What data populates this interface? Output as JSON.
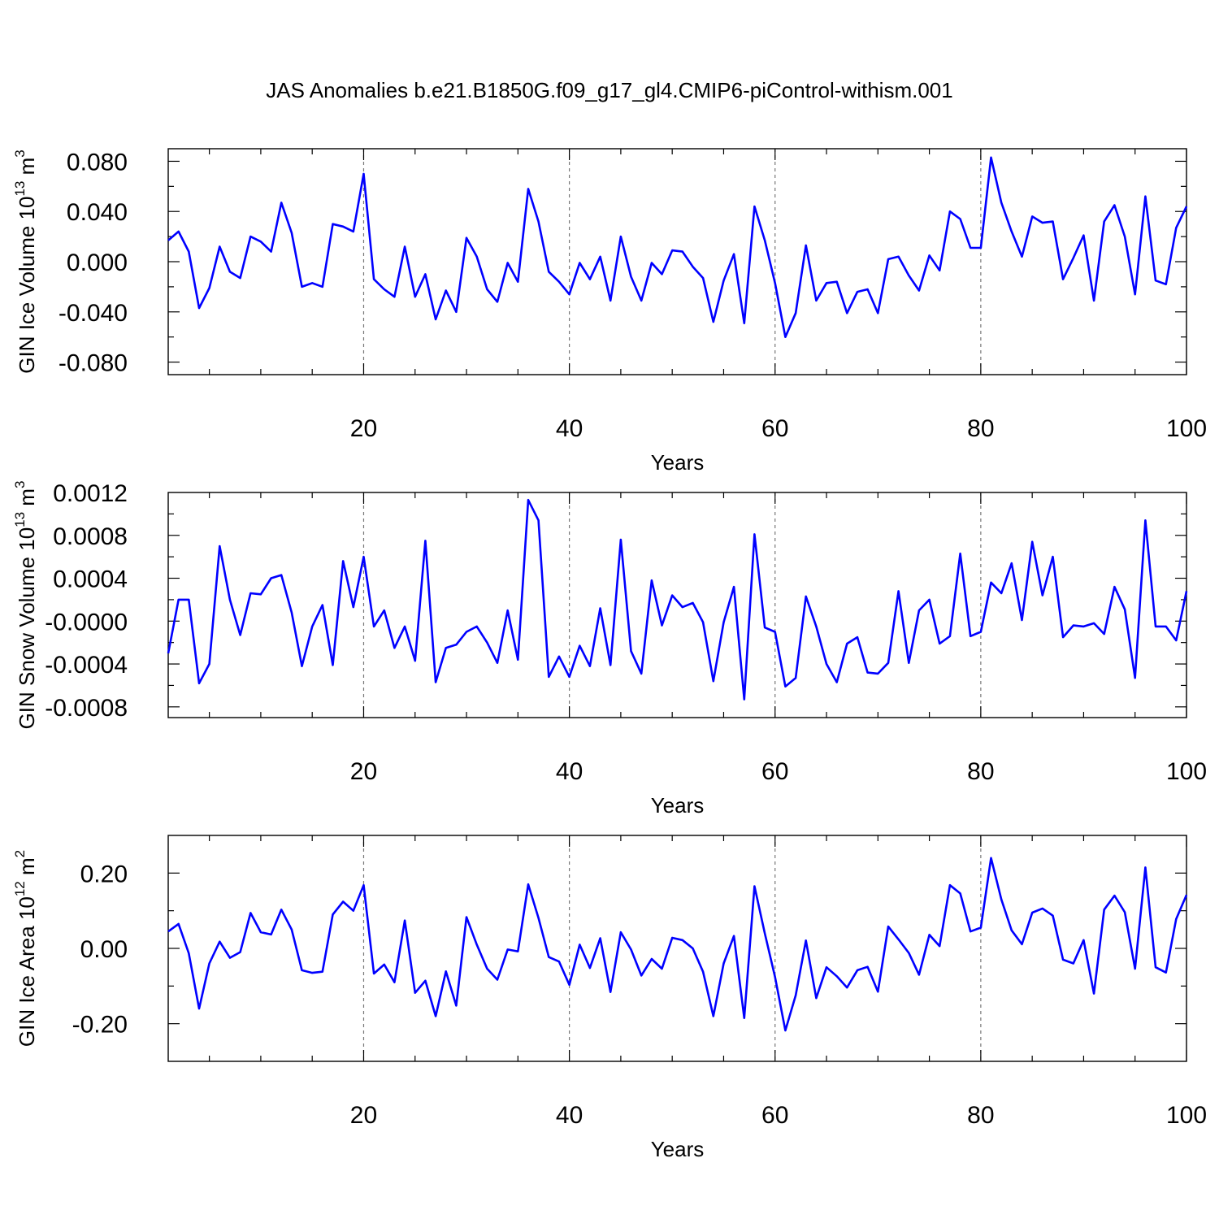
{
  "title": "JAS Anomalies b.e21.B1850G.f09_g17_gl4.CMIP6-piControl-withism.001",
  "colors": {
    "series": "#0000ff",
    "grid": "#777777"
  },
  "chart_data": [
    {
      "type": "line",
      "xlabel": "Years",
      "ylabel": {
        "main": "GIN Ice Volume 10",
        "exp": "13",
        "unit": " m",
        "unit_exp": "3"
      },
      "xlim": [
        1,
        100
      ],
      "ylim": [
        -0.09,
        0.09
      ],
      "xticks": [
        20,
        40,
        60,
        80,
        100
      ],
      "xtick_labels": [
        "20",
        "40",
        "60",
        "80",
        "100"
      ],
      "yticks": [
        -0.08,
        -0.04,
        0.0,
        0.04,
        0.08
      ],
      "ytick_labels": [
        "-0.080",
        "-0.040",
        "0.000",
        "0.040",
        "0.080"
      ],
      "grid": "vertical dashed at major x ticks",
      "x": [
        1,
        2,
        3,
        4,
        5,
        6,
        7,
        8,
        9,
        10,
        11,
        12,
        13,
        14,
        15,
        16,
        17,
        18,
        19,
        20,
        21,
        22,
        23,
        24,
        25,
        26,
        27,
        28,
        29,
        30,
        31,
        32,
        33,
        34,
        35,
        36,
        37,
        38,
        39,
        40,
        41,
        42,
        43,
        44,
        45,
        46,
        47,
        48,
        49,
        50,
        51,
        52,
        53,
        54,
        55,
        56,
        57,
        58,
        59,
        60,
        61,
        62,
        63,
        64,
        65,
        66,
        67,
        68,
        69,
        70,
        71,
        72,
        73,
        74,
        75,
        76,
        77,
        78,
        79,
        80,
        81,
        82,
        83,
        84,
        85,
        86,
        87,
        88,
        89,
        90,
        91,
        92,
        93,
        94,
        95,
        96,
        97,
        98,
        99,
        100
      ],
      "values": [
        0.017,
        0.024,
        0.008,
        -0.037,
        -0.021,
        0.012,
        -0.008,
        -0.013,
        0.02,
        0.016,
        0.008,
        0.047,
        0.023,
        -0.02,
        -0.017,
        -0.02,
        0.03,
        0.028,
        0.024,
        0.07,
        -0.014,
        -0.022,
        -0.028,
        0.012,
        -0.028,
        -0.01,
        -0.046,
        -0.023,
        -0.04,
        0.019,
        0.004,
        -0.022,
        -0.032,
        -0.001,
        -0.016,
        0.058,
        0.032,
        -0.008,
        -0.016,
        -0.026,
        -0.001,
        -0.014,
        0.004,
        -0.031,
        0.02,
        -0.012,
        -0.031,
        -0.001,
        -0.01,
        0.009,
        0.008,
        -0.004,
        -0.013,
        -0.048,
        -0.015,
        0.006,
        -0.049,
        0.044,
        0.017,
        -0.017,
        -0.06,
        -0.041,
        0.013,
        -0.031,
        -0.017,
        -0.016,
        -0.041,
        -0.024,
        -0.022,
        -0.041,
        0.002,
        0.004,
        -0.011,
        -0.023,
        0.005,
        -0.007,
        0.04,
        0.034,
        0.011,
        0.011,
        0.083,
        0.047,
        0.024,
        0.004,
        0.036,
        0.031,
        0.032,
        -0.014,
        0.003,
        0.021,
        -0.031,
        0.032,
        0.045,
        0.02,
        -0.026,
        0.052,
        -0.015,
        -0.018,
        0.027,
        0.044
      ]
    },
    {
      "type": "line",
      "xlabel": "Years",
      "ylabel": {
        "main": "GIN Snow Volume 10",
        "exp": "13",
        "unit": " m",
        "unit_exp": "3"
      },
      "xlim": [
        1,
        100
      ],
      "ylim": [
        -0.0009,
        0.0012
      ],
      "xticks": [
        20,
        40,
        60,
        80,
        100
      ],
      "xtick_labels": [
        "20",
        "40",
        "60",
        "80",
        "100"
      ],
      "yticks": [
        -0.0008,
        -0.0004,
        0.0,
        0.0004,
        0.0008,
        0.0012
      ],
      "ytick_labels": [
        "-0.0008",
        "-0.0004",
        "-0.0000",
        "0.0004",
        "0.0008",
        "0.0012"
      ],
      "grid": "vertical dashed at major x ticks",
      "x": [
        1,
        2,
        3,
        4,
        5,
        6,
        7,
        8,
        9,
        10,
        11,
        12,
        13,
        14,
        15,
        16,
        17,
        18,
        19,
        20,
        21,
        22,
        23,
        24,
        25,
        26,
        27,
        28,
        29,
        30,
        31,
        32,
        33,
        34,
        35,
        36,
        37,
        38,
        39,
        40,
        41,
        42,
        43,
        44,
        45,
        46,
        47,
        48,
        49,
        50,
        51,
        52,
        53,
        54,
        55,
        56,
        57,
        58,
        59,
        60,
        61,
        62,
        63,
        64,
        65,
        66,
        67,
        68,
        69,
        70,
        71,
        72,
        73,
        74,
        75,
        76,
        77,
        78,
        79,
        80,
        81,
        82,
        83,
        84,
        85,
        86,
        87,
        88,
        89,
        90,
        91,
        92,
        93,
        94,
        95,
        96,
        97,
        98,
        99,
        100
      ],
      "values": [
        -0.0003,
        0.0002,
        0.0002,
        -0.00058,
        -0.0004,
        0.0007,
        0.0002,
        -0.00013,
        0.00026,
        0.00025,
        0.0004,
        0.00043,
        8e-05,
        -0.00042,
        -5e-05,
        0.00015,
        -0.00041,
        0.00056,
        0.00013,
        0.0006,
        -5e-05,
        0.0001,
        -0.00025,
        -5e-05,
        -0.00037,
        0.00075,
        -0.00057,
        -0.00025,
        -0.00022,
        -0.0001,
        -5e-05,
        -0.0002,
        -0.00039,
        0.0001,
        -0.00036,
        0.00113,
        0.00094,
        -0.00052,
        -0.00033,
        -0.00052,
        -0.00023,
        -0.00042,
        0.00012,
        -0.00041,
        0.00076,
        -0.00028,
        -0.00049,
        0.00038,
        -4e-05,
        0.00024,
        0.00013,
        0.00017,
        -1e-05,
        -0.00056,
        -1e-05,
        0.00032,
        -0.00073,
        0.00081,
        -6e-05,
        -0.0001,
        -0.00061,
        -0.00053,
        0.00023,
        -5e-05,
        -0.0004,
        -0.00057,
        -0.00021,
        -0.00015,
        -0.00048,
        -0.00049,
        -0.00039,
        0.00028,
        -0.00039,
        0.0001,
        0.0002,
        -0.00021,
        -0.00014,
        0.00063,
        -0.00014,
        -0.0001,
        0.00036,
        0.00026,
        0.00054,
        1e-05,
        0.00074,
        0.00024,
        0.0006,
        -0.00015,
        -4e-05,
        -5e-05,
        -2e-05,
        -0.00012,
        0.00032,
        0.00011,
        -0.00053,
        0.00094,
        -5e-05,
        -5e-05,
        -0.00018,
        0.00028
      ]
    },
    {
      "type": "line",
      "xlabel": "Years",
      "ylabel": {
        "main": "GIN Ice Area 10",
        "exp": "12",
        "unit": " m",
        "unit_exp": "2"
      },
      "xlim": [
        1,
        100
      ],
      "ylim": [
        -0.3,
        0.3
      ],
      "xticks": [
        20,
        40,
        60,
        80,
        100
      ],
      "xtick_labels": [
        "20",
        "40",
        "60",
        "80",
        "100"
      ],
      "yticks": [
        -0.2,
        0.0,
        0.2
      ],
      "ytick_labels": [
        "-0.20",
        "0.00",
        "0.20"
      ],
      "grid": "vertical dashed at major x ticks",
      "x": [
        1,
        2,
        3,
        4,
        5,
        6,
        7,
        8,
        9,
        10,
        11,
        12,
        13,
        14,
        15,
        16,
        17,
        18,
        19,
        20,
        21,
        22,
        23,
        24,
        25,
        26,
        27,
        28,
        29,
        30,
        31,
        32,
        33,
        34,
        35,
        36,
        37,
        38,
        39,
        40,
        41,
        42,
        43,
        44,
        45,
        46,
        47,
        48,
        49,
        50,
        51,
        52,
        53,
        54,
        55,
        56,
        57,
        58,
        59,
        60,
        61,
        62,
        63,
        64,
        65,
        66,
        67,
        68,
        69,
        70,
        71,
        72,
        73,
        74,
        75,
        76,
        77,
        78,
        79,
        80,
        81,
        82,
        83,
        84,
        85,
        86,
        87,
        88,
        89,
        90,
        91,
        92,
        93,
        94,
        95,
        96,
        97,
        98,
        99,
        100
      ],
      "values": [
        0.045,
        0.065,
        -0.013,
        -0.16,
        -0.04,
        0.018,
        -0.025,
        -0.01,
        0.094,
        0.043,
        0.037,
        0.103,
        0.05,
        -0.058,
        -0.065,
        -0.062,
        0.09,
        0.124,
        0.1,
        0.168,
        -0.067,
        -0.043,
        -0.09,
        0.074,
        -0.118,
        -0.086,
        -0.18,
        -0.061,
        -0.152,
        0.083,
        0.01,
        -0.054,
        -0.083,
        -0.003,
        -0.008,
        0.17,
        0.081,
        -0.023,
        -0.035,
        -0.097,
        0.01,
        -0.052,
        0.027,
        -0.116,
        0.043,
        -0.003,
        -0.072,
        -0.028,
        -0.054,
        0.028,
        0.022,
        0.0,
        -0.062,
        -0.18,
        -0.04,
        0.033,
        -0.185,
        0.165,
        0.04,
        -0.076,
        -0.218,
        -0.125,
        0.021,
        -0.132,
        -0.05,
        -0.074,
        -0.104,
        -0.058,
        -0.049,
        -0.115,
        0.058,
        0.024,
        -0.012,
        -0.07,
        0.036,
        0.006,
        0.168,
        0.146,
        0.045,
        0.055,
        0.24,
        0.13,
        0.048,
        0.011,
        0.095,
        0.106,
        0.087,
        -0.03,
        -0.04,
        0.022,
        -0.12,
        0.103,
        0.14,
        0.096,
        -0.054,
        0.215,
        -0.05,
        -0.064,
        0.078,
        0.142
      ]
    }
  ]
}
